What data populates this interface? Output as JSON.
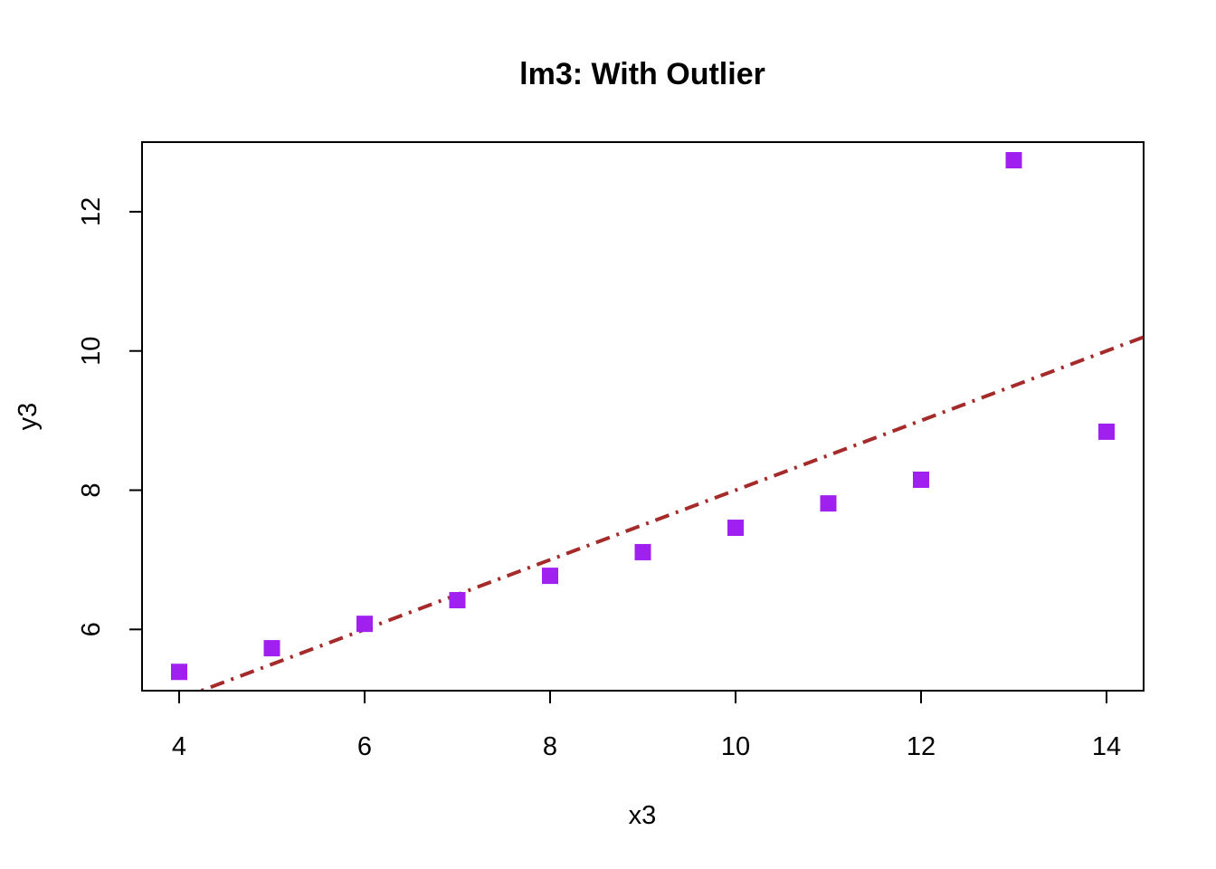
{
  "chart_data": {
    "type": "scatter",
    "title": "lm3: With Outlier",
    "xlabel": "x3",
    "ylabel": "y3",
    "xlim": [
      3.6,
      14.4
    ],
    "ylim": [
      5.12,
      13.0
    ],
    "xticks": [
      4,
      6,
      8,
      10,
      12,
      14
    ],
    "yticks": [
      6,
      8,
      10,
      12
    ],
    "grid": false,
    "legend": "none",
    "series": [
      {
        "x": [
          4,
          5,
          6,
          7,
          8,
          9,
          10,
          11,
          12,
          13,
          14
        ],
        "y": [
          5.39,
          5.73,
          6.08,
          6.42,
          6.77,
          7.11,
          7.46,
          7.81,
          8.15,
          12.74,
          8.84
        ],
        "marker": "square",
        "color": "#a020f0"
      }
    ],
    "fit_line": {
      "intercept": 3.0,
      "slope": 0.5,
      "style": "dot-dash",
      "color": "#a52a2a"
    }
  }
}
